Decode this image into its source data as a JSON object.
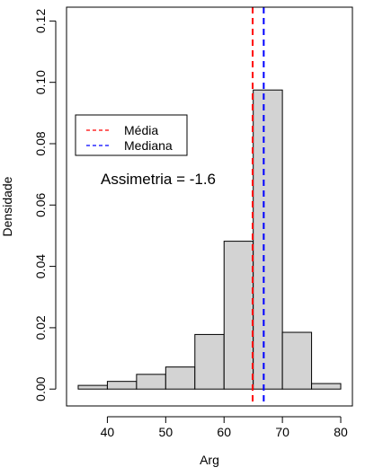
{
  "chart_data": {
    "type": "bar",
    "xlabel": "Arg",
    "ylabel": "Densidade",
    "xlim": [
      33,
      82
    ],
    "ylim": [
      -0.0055,
      0.1245
    ],
    "x_ticks": [
      40,
      50,
      60,
      70,
      80
    ],
    "y_ticks": [
      0.0,
      0.02,
      0.04,
      0.06,
      0.08,
      0.1,
      0.12
    ],
    "y_tick_labels": [
      "0.00",
      "0.02",
      "0.04",
      "0.06",
      "0.08",
      "0.10",
      "0.12"
    ],
    "bins": [
      {
        "start": 35,
        "end": 40,
        "density": 0.0012
      },
      {
        "start": 40,
        "end": 45,
        "density": 0.0025
      },
      {
        "start": 45,
        "end": 50,
        "density": 0.0048
      },
      {
        "start": 50,
        "end": 55,
        "density": 0.0072
      },
      {
        "start": 55,
        "end": 60,
        "density": 0.0178
      },
      {
        "start": 60,
        "end": 65,
        "density": 0.0482
      },
      {
        "start": 65,
        "end": 70,
        "density": 0.0975
      },
      {
        "start": 70,
        "end": 75,
        "density": 0.0185
      },
      {
        "start": 75,
        "end": 80,
        "density": 0.0018
      }
    ],
    "bar_color": "#d3d3d3",
    "reference_lines": [
      {
        "name": "Média",
        "x": 64.9,
        "color": "#ff0000",
        "style": "dashed"
      },
      {
        "name": "Mediana",
        "x": 66.8,
        "color": "#0000ff",
        "style": "dashed"
      }
    ],
    "legend": {
      "position": "left",
      "entries": [
        {
          "label": "Média",
          "color": "#ff0000"
        },
        {
          "label": "Mediana",
          "color": "#0000ff"
        }
      ]
    },
    "annotation": "Assimetria = -1.6",
    "grid": false
  }
}
